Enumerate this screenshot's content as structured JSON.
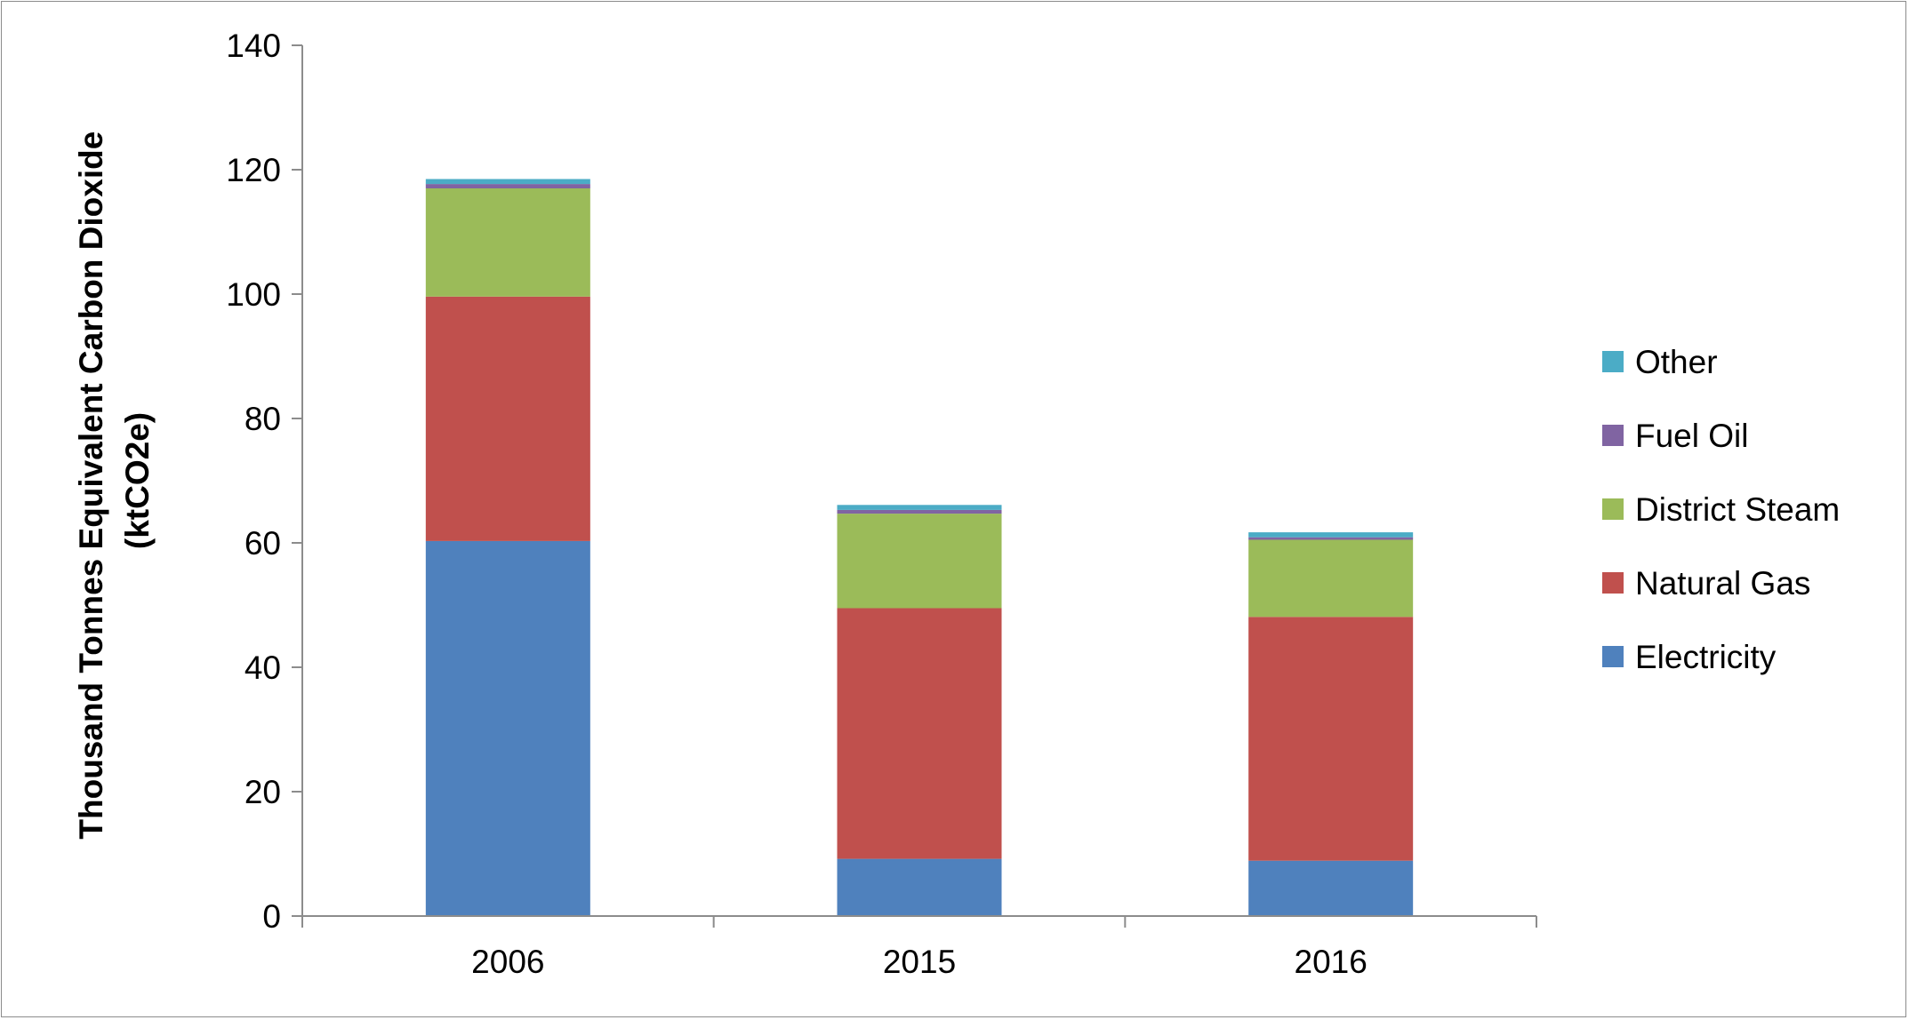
{
  "chart_data": {
    "type": "bar",
    "stacked": true,
    "categories": [
      "2006",
      "2015",
      "2016"
    ],
    "series": [
      {
        "name": "Electricity",
        "color": "#4F81BD",
        "values": [
          60.3,
          9.2,
          8.9
        ]
      },
      {
        "name": "Natural Gas",
        "color": "#C0504D",
        "values": [
          39.3,
          40.3,
          39.2
        ]
      },
      {
        "name": "District Steam",
        "color": "#9BBB59",
        "values": [
          17.4,
          15.2,
          12.4
        ]
      },
      {
        "name": "Fuel Oil",
        "color": "#8064A2",
        "values": [
          0.7,
          0.6,
          0.4
        ]
      },
      {
        "name": "Other",
        "color": "#4BACC6",
        "values": [
          0.8,
          0.8,
          0.8
        ]
      }
    ],
    "ylabel_lines": [
      "Thousand Tonnes Equivalent Carbon Dioxide",
      "(ktCO2e)"
    ],
    "xlabel": "",
    "ylim": [
      0,
      140
    ],
    "yticks": [
      "0",
      "20",
      "40",
      "60",
      "80",
      "100",
      "120",
      "140"
    ],
    "grid": false,
    "legend_position": "right",
    "legend_order": [
      "Other",
      "Fuel Oil",
      "District Steam",
      "Natural Gas",
      "Electricity"
    ]
  }
}
